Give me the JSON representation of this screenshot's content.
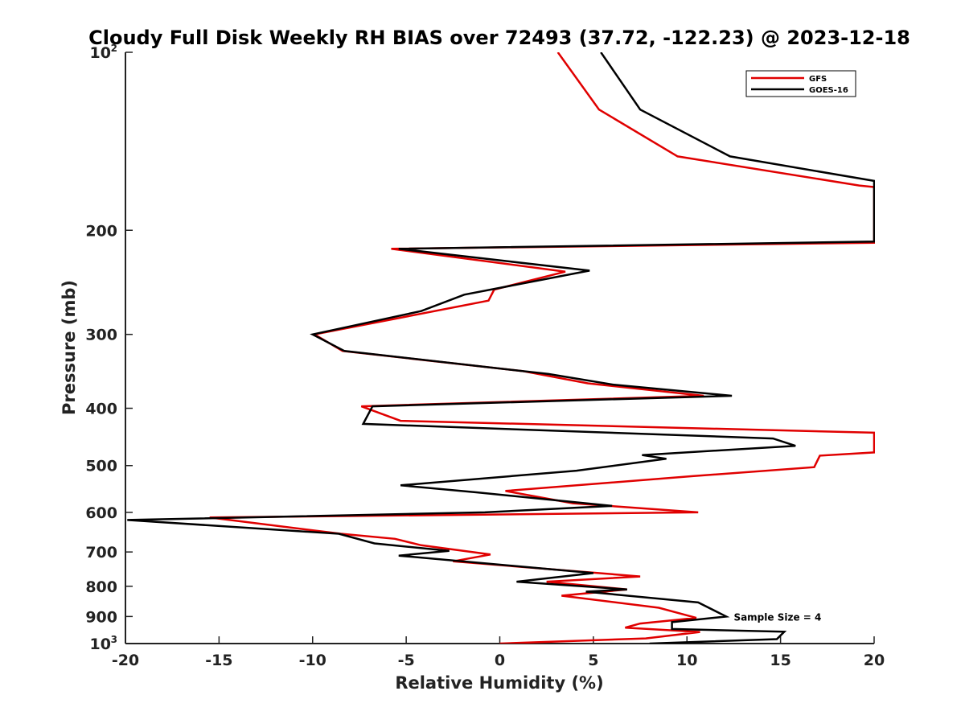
{
  "chart_data": {
    "type": "line",
    "title": "Cloudy Full Disk Weekly RH BIAS over 72493 (37.72, -122.23) @ 2023-12-18",
    "xlabel": "Relative Humidity (%)",
    "ylabel": "Pressure (mb)",
    "xlim": [
      -20,
      20
    ],
    "ylim": [
      100,
      1000
    ],
    "y_scale": "log",
    "y_reversed": true,
    "grid": false,
    "legend_position": "top-right",
    "x_ticks": [
      "-20",
      "-15",
      "-10",
      "-5",
      "0",
      "5",
      "10",
      "15",
      "20"
    ],
    "y_ticks": [
      {
        "label": "10",
        "sup": "2"
      },
      {
        "label": "200",
        "sup": ""
      },
      {
        "label": "300",
        "sup": ""
      },
      {
        "label": "400",
        "sup": ""
      },
      {
        "label": "500",
        "sup": ""
      },
      {
        "label": "600",
        "sup": ""
      },
      {
        "label": "700",
        "sup": ""
      },
      {
        "label": "800",
        "sup": ""
      },
      {
        "label": "900",
        "sup": ""
      },
      {
        "label": "10",
        "sup": "3"
      }
    ],
    "series": [
      {
        "name": "GFS",
        "color": "#e00000",
        "points": [
          [
            3.1,
            100
          ],
          [
            5.3,
            125
          ],
          [
            9.5,
            150
          ],
          [
            19.2,
            168
          ],
          [
            20.0,
            169
          ],
          [
            20.0,
            210
          ],
          [
            -5.8,
            215
          ],
          [
            3.5,
            235
          ],
          [
            -0.3,
            252
          ],
          [
            -0.6,
            263
          ],
          [
            -9.9,
            300
          ],
          [
            -8.4,
            320
          ],
          [
            1.2,
            346
          ],
          [
            4.7,
            363
          ],
          [
            10.9,
            381
          ],
          [
            -7.4,
            397
          ],
          [
            -5.3,
            420
          ],
          [
            20.0,
            440
          ],
          [
            20.0,
            475
          ],
          [
            17.1,
            481
          ],
          [
            16.8,
            503
          ],
          [
            10.3,
            521
          ],
          [
            0.3,
            552
          ],
          [
            3.9,
            579
          ],
          [
            10.6,
            600
          ],
          [
            -15.5,
            612
          ],
          [
            -8.5,
            652
          ],
          [
            -5.6,
            665
          ],
          [
            -4.2,
            682
          ],
          [
            -0.5,
            707
          ],
          [
            -2.5,
            726
          ],
          [
            7.5,
            770
          ],
          [
            2.5,
            786
          ],
          [
            6.8,
            810
          ],
          [
            3.3,
            830
          ],
          [
            8.5,
            870
          ],
          [
            10.5,
            905
          ],
          [
            7.5,
            925
          ],
          [
            6.7,
            940
          ],
          [
            10.7,
            956
          ],
          [
            7.8,
            980
          ],
          [
            0.0,
            1000
          ]
        ]
      },
      {
        "name": "GOES-16",
        "color": "#000000",
        "points": [
          [
            5.4,
            100
          ],
          [
            7.5,
            125
          ],
          [
            12.3,
            150
          ],
          [
            20.0,
            165
          ],
          [
            20.0,
            209
          ],
          [
            -5.4,
            215
          ],
          [
            4.8,
            234
          ],
          [
            -1.9,
            257
          ],
          [
            -4.2,
            274
          ],
          [
            -10.0,
            300
          ],
          [
            -8.3,
            320
          ],
          [
            2.6,
            350
          ],
          [
            6.1,
            365
          ],
          [
            12.4,
            381
          ],
          [
            -6.8,
            397
          ],
          [
            -7.3,
            425
          ],
          [
            14.6,
            450
          ],
          [
            15.8,
            463
          ],
          [
            7.6,
            480
          ],
          [
            8.9,
            487
          ],
          [
            4.1,
            510
          ],
          [
            -5.3,
            540
          ],
          [
            -1.2,
            555
          ],
          [
            6.0,
            585
          ],
          [
            -0.8,
            600
          ],
          [
            -19.9,
            618
          ],
          [
            -8.6,
            652
          ],
          [
            -6.7,
            677
          ],
          [
            -2.7,
            697
          ],
          [
            -5.4,
            710
          ],
          [
            5.0,
            760
          ],
          [
            0.9,
            786
          ],
          [
            6.8,
            810
          ],
          [
            4.6,
            817
          ],
          [
            10.6,
            852
          ],
          [
            12.1,
            900
          ],
          [
            9.2,
            920
          ],
          [
            9.2,
            945
          ],
          [
            15.2,
            955
          ],
          [
            14.8,
            983
          ],
          [
            8.0,
            1000
          ]
        ]
      }
    ],
    "annotations": [
      {
        "text": "Sample Size = 4",
        "x": 12.5,
        "y": 900
      }
    ]
  }
}
